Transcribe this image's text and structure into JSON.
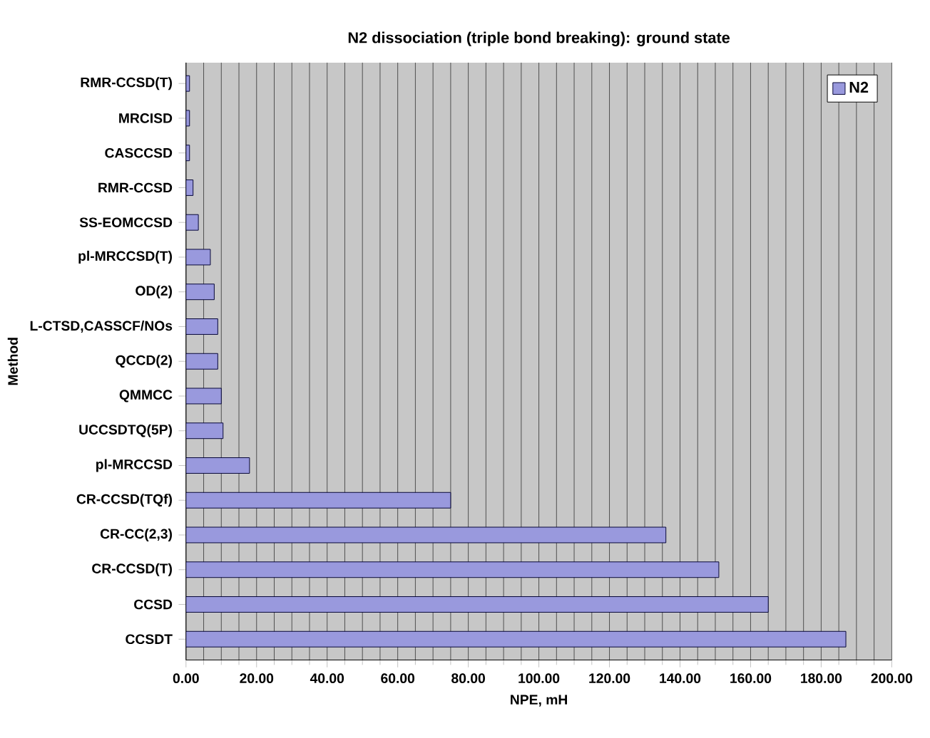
{
  "chart_data": {
    "type": "bar",
    "orientation": "horizontal",
    "title": "N2 dissociation (triple bond breaking): ground state",
    "xlabel": "NPE, mH",
    "ylabel": "Method",
    "categories": [
      "RMR-CCSD(T)",
      "MRCISD",
      "CASCCSD",
      "RMR-CCSD",
      "SS-EOMCCSD",
      "pl-MRCCSD(T)",
      "OD(2)",
      "L-CTSD,CASSCF/NOs",
      "QCCD(2)",
      "QMMCC",
      "UCCSDTQ(5P)",
      "pl-MRCCSD",
      "CR-CCSD(TQf)",
      "CR-CC(2,3)",
      "CR-CCSD(T)",
      "CCSD",
      "CCSDT"
    ],
    "series": [
      {
        "name": "N2",
        "color": "#9999dd",
        "values": [
          1,
          1,
          1,
          2,
          3.5,
          6.9,
          8,
          9,
          9,
          10,
          10.5,
          18,
          75,
          136,
          151,
          165,
          187
        ]
      }
    ],
    "xlim": [
      0,
      200
    ],
    "xticks": [
      {
        "value": 0,
        "label": "0.00"
      },
      {
        "value": 20,
        "label": "20.00"
      },
      {
        "value": 40,
        "label": "40.00"
      },
      {
        "value": 60,
        "label": "60.00"
      },
      {
        "value": 80,
        "label": "80.00"
      },
      {
        "value": 100,
        "label": "100.00"
      },
      {
        "value": 120,
        "label": "120.00"
      },
      {
        "value": 140,
        "label": "140.00"
      },
      {
        "value": 160,
        "label": "160.00"
      },
      {
        "value": 180,
        "label": "180.00"
      },
      {
        "value": 200,
        "label": "200.00"
      }
    ],
    "grid": "x",
    "legend": "top right"
  }
}
